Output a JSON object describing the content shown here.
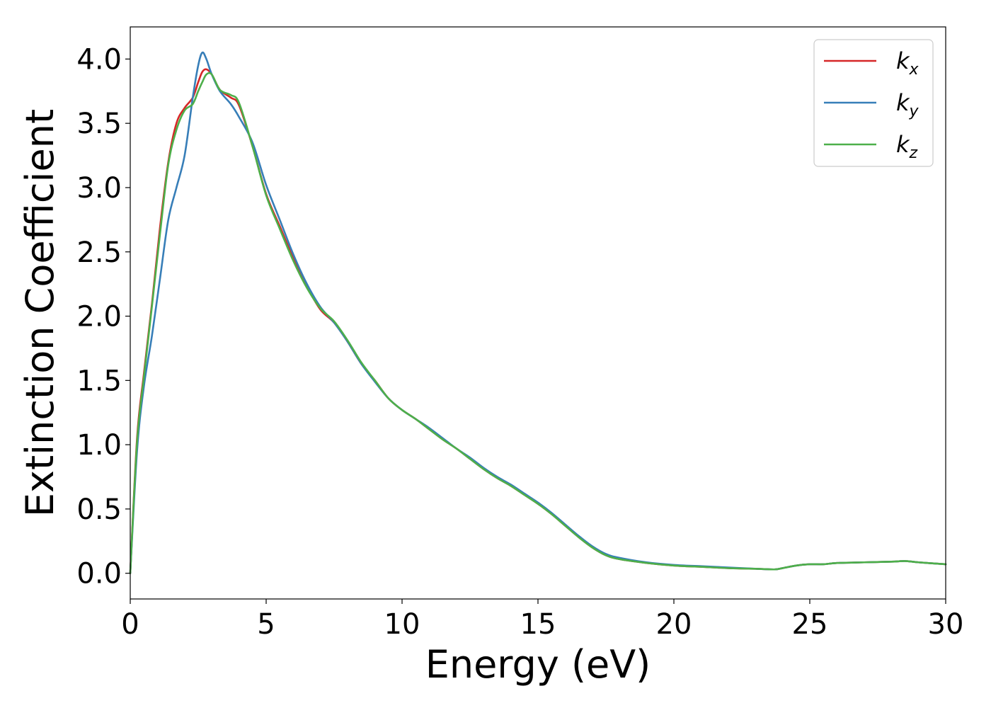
{
  "chart_data": {
    "type": "line",
    "xlabel": "Energy (eV)",
    "ylabel": "Extinction Coefficient",
    "xlim": [
      0,
      30
    ],
    "ylim": [
      -0.2,
      4.25
    ],
    "xticks": [
      0,
      5,
      10,
      15,
      20,
      25,
      30
    ],
    "xtick_labels": [
      "0",
      "5",
      "10",
      "15",
      "20",
      "25",
      "30"
    ],
    "yticks": [
      0.0,
      0.5,
      1.0,
      1.5,
      2.0,
      2.5,
      3.0,
      3.5,
      4.0
    ],
    "ytick_labels": [
      "0.0",
      "0.5",
      "1.0",
      "1.5",
      "2.0",
      "2.5",
      "3.0",
      "3.5",
      "4.0"
    ],
    "grid": false,
    "legend_position": "top-right",
    "x": [
      0,
      0.25,
      0.5,
      0.8,
      1.1,
      1.4,
      1.7,
      2.0,
      2.3,
      2.5,
      2.65,
      2.8,
      3.0,
      3.3,
      3.7,
      4.0,
      4.5,
      5.0,
      5.5,
      6.0,
      6.5,
      7.0,
      7.5,
      8.0,
      8.5,
      9.0,
      9.5,
      10.0,
      10.5,
      11.0,
      11.5,
      12.0,
      12.5,
      13.0,
      13.5,
      14.0,
      14.5,
      15.0,
      15.5,
      16.0,
      16.5,
      17.0,
      17.5,
      18.0,
      19.0,
      20.0,
      21.0,
      22.0,
      23.0,
      23.7,
      24.0,
      24.5,
      25.0,
      25.5,
      26.0,
      27.0,
      28.0,
      28.5,
      29.0,
      30.0
    ],
    "series": [
      {
        "name": "k_x",
        "label_main": "k",
        "label_sub": "x",
        "color": "#d62728",
        "values": [
          0.0,
          1.05,
          1.55,
          2.1,
          2.7,
          3.2,
          3.5,
          3.62,
          3.7,
          3.82,
          3.9,
          3.92,
          3.88,
          3.76,
          3.7,
          3.64,
          3.32,
          2.95,
          2.7,
          2.45,
          2.23,
          2.05,
          1.95,
          1.8,
          1.63,
          1.5,
          1.36,
          1.27,
          1.2,
          1.12,
          1.04,
          0.97,
          0.89,
          0.81,
          0.74,
          0.68,
          0.61,
          0.54,
          0.46,
          0.37,
          0.28,
          0.2,
          0.14,
          0.11,
          0.08,
          0.06,
          0.05,
          0.04,
          0.035,
          0.03,
          0.04,
          0.06,
          0.07,
          0.07,
          0.08,
          0.085,
          0.09,
          0.095,
          0.085,
          0.07
        ]
      },
      {
        "name": "k_y",
        "label_main": "k",
        "label_sub": "y",
        "color": "#377eb8",
        "values": [
          0.0,
          0.95,
          1.45,
          1.85,
          2.3,
          2.75,
          3.0,
          3.25,
          3.7,
          3.95,
          4.05,
          4.0,
          3.88,
          3.75,
          3.65,
          3.55,
          3.35,
          3.02,
          2.75,
          2.48,
          2.25,
          2.07,
          1.95,
          1.8,
          1.63,
          1.49,
          1.36,
          1.27,
          1.2,
          1.13,
          1.05,
          0.97,
          0.9,
          0.82,
          0.75,
          0.69,
          0.62,
          0.55,
          0.47,
          0.38,
          0.29,
          0.21,
          0.15,
          0.12,
          0.085,
          0.065,
          0.055,
          0.045,
          0.035,
          0.03,
          0.04,
          0.06,
          0.07,
          0.07,
          0.08,
          0.085,
          0.09,
          0.095,
          0.085,
          0.07
        ]
      },
      {
        "name": "k_z",
        "label_main": "k",
        "label_sub": "z",
        "color": "#4daf4a",
        "values": [
          0.0,
          1.02,
          1.52,
          2.08,
          2.65,
          3.18,
          3.45,
          3.6,
          3.65,
          3.75,
          3.82,
          3.88,
          3.88,
          3.76,
          3.72,
          3.66,
          3.32,
          2.94,
          2.68,
          2.43,
          2.22,
          2.06,
          1.96,
          1.81,
          1.64,
          1.5,
          1.36,
          1.27,
          1.2,
          1.12,
          1.04,
          0.97,
          0.89,
          0.81,
          0.74,
          0.68,
          0.61,
          0.54,
          0.46,
          0.37,
          0.28,
          0.2,
          0.14,
          0.11,
          0.08,
          0.06,
          0.05,
          0.04,
          0.035,
          0.03,
          0.04,
          0.06,
          0.07,
          0.07,
          0.08,
          0.085,
          0.09,
          0.095,
          0.085,
          0.07
        ]
      }
    ]
  }
}
